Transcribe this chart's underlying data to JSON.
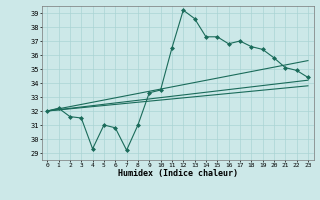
{
  "xlabel": "Humidex (Indice chaleur)",
  "bg_color": "#cce8e8",
  "line_color": "#1a6b5a",
  "grid_color": "#aad4d4",
  "xlim": [
    -0.5,
    23.5
  ],
  "ylim": [
    28.5,
    39.5
  ],
  "xtick_labels": [
    "0",
    "1",
    "2",
    "3",
    "4",
    "5",
    "6",
    "7",
    "8",
    "9",
    "10",
    "11",
    "12",
    "13",
    "14",
    "15",
    "16",
    "17",
    "18",
    "19",
    "20",
    "21",
    "22",
    "23"
  ],
  "yticks": [
    29,
    30,
    31,
    32,
    33,
    34,
    35,
    36,
    37,
    38,
    39
  ],
  "series1_x": [
    0,
    1,
    2,
    3,
    4,
    5,
    6,
    7,
    8,
    9,
    10,
    11,
    12,
    13,
    14,
    15,
    16,
    17,
    18,
    19,
    20,
    21,
    22,
    23
  ],
  "series1_y": [
    32.0,
    32.2,
    31.6,
    31.5,
    29.3,
    31.0,
    30.8,
    29.2,
    31.0,
    33.3,
    33.5,
    36.5,
    39.2,
    38.6,
    37.3,
    37.3,
    36.8,
    37.0,
    36.6,
    36.4,
    35.8,
    35.1,
    34.9,
    34.4
  ],
  "trend1_x": [
    0,
    23
  ],
  "trend1_y": [
    32.0,
    34.2
  ],
  "trend2_x": [
    0,
    23
  ],
  "trend2_y": [
    32.0,
    33.8
  ],
  "trend3_x": [
    0,
    23
  ],
  "trend3_y": [
    32.0,
    35.6
  ]
}
